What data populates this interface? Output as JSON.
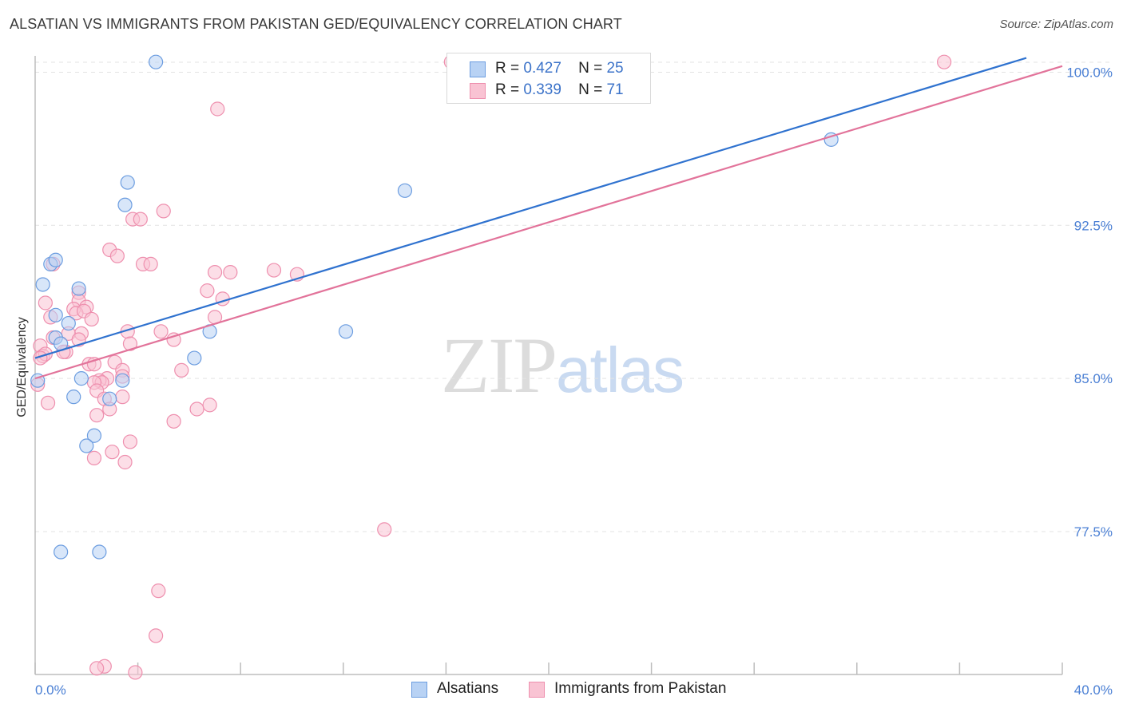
{
  "header": {
    "title": "ALSATIAN VS IMMIGRANTS FROM PAKISTAN GED/EQUIVALENCY CORRELATION CHART",
    "source": "Source: ZipAtlas.com"
  },
  "watermark": {
    "zip": "ZIP",
    "atlas": "atlas"
  },
  "legend_top": {
    "rows": [
      {
        "r_label": "R =",
        "r_value": "0.427",
        "n_label": "N =",
        "n_value": "25"
      },
      {
        "r_label": "R =",
        "r_value": "0.339",
        "n_label": "N =",
        "n_value": "71"
      }
    ]
  },
  "legend_bottom": {
    "items": [
      "Alsatians",
      "Immigrants from Pakistan"
    ]
  },
  "colors": {
    "alsatian_fill": "#b8d2f4",
    "alsatian_stroke": "#6c9de0",
    "alsatian_line": "#2f72cf",
    "pakistan_fill": "#f9c3d3",
    "pakistan_stroke": "#ee8fae",
    "pakistan_line": "#e2739a",
    "grid": "#e3e3e3",
    "axis_text": "#4a7fd4"
  },
  "chart_data": {
    "type": "scatter",
    "title": "ALSATIAN VS IMMIGRANTS FROM PAKISTAN GED/EQUIVALENCY CORRELATION CHART",
    "xlabel": "",
    "ylabel": "GED/Equivalency",
    "xlim": [
      0,
      40
    ],
    "ylim": [
      70.5,
      100.8
    ],
    "x_tick_labels": [
      "0.0%",
      "40.0%"
    ],
    "y_ticks": [
      77.5,
      85.0,
      92.5,
      100.0
    ],
    "y_tick_labels": [
      "77.5%",
      "85.0%",
      "92.5%",
      "100.0%"
    ],
    "grid": true,
    "series": [
      {
        "name": "Alsatians",
        "R": 0.427,
        "N": 25,
        "trend": {
          "x": [
            0,
            38.6
          ],
          "y": [
            86.0,
            100.7
          ]
        },
        "points": [
          [
            4.7,
            100.5
          ],
          [
            3.6,
            94.6
          ],
          [
            3.5,
            93.5
          ],
          [
            14.4,
            94.2
          ],
          [
            31.0,
            96.7
          ],
          [
            0.6,
            90.6
          ],
          [
            0.8,
            90.8
          ],
          [
            0.3,
            89.6
          ],
          [
            1.7,
            89.4
          ],
          [
            0.8,
            88.1
          ],
          [
            1.3,
            87.7
          ],
          [
            0.8,
            87.0
          ],
          [
            1.0,
            86.7
          ],
          [
            6.8,
            87.3
          ],
          [
            12.1,
            87.3
          ],
          [
            6.2,
            86.0
          ],
          [
            1.8,
            85.0
          ],
          [
            3.4,
            84.9
          ],
          [
            0.1,
            84.9
          ],
          [
            1.5,
            84.1
          ],
          [
            2.9,
            84.0
          ],
          [
            2.3,
            82.2
          ],
          [
            2.0,
            81.7
          ],
          [
            1.0,
            76.5
          ],
          [
            2.5,
            76.5
          ]
        ]
      },
      {
        "name": "Immigrants from Pakistan",
        "R": 0.339,
        "N": 71,
        "trend": {
          "x": [
            0,
            40
          ],
          "y": [
            85.0,
            100.3
          ]
        },
        "points": [
          [
            16.2,
            100.5
          ],
          [
            35.4,
            100.5
          ],
          [
            7.1,
            98.2
          ],
          [
            5.0,
            93.2
          ],
          [
            3.8,
            92.8
          ],
          [
            4.1,
            92.8
          ],
          [
            2.9,
            91.3
          ],
          [
            3.2,
            91.0
          ],
          [
            4.2,
            90.6
          ],
          [
            4.5,
            90.6
          ],
          [
            0.7,
            90.6
          ],
          [
            7.0,
            90.2
          ],
          [
            7.6,
            90.2
          ],
          [
            9.3,
            90.3
          ],
          [
            10.2,
            90.1
          ],
          [
            6.7,
            89.3
          ],
          [
            1.7,
            89.2
          ],
          [
            7.3,
            88.9
          ],
          [
            0.4,
            88.7
          ],
          [
            1.7,
            88.8
          ],
          [
            1.5,
            88.4
          ],
          [
            2.0,
            88.5
          ],
          [
            1.6,
            88.2
          ],
          [
            1.9,
            88.3
          ],
          [
            0.6,
            88.0
          ],
          [
            2.2,
            87.9
          ],
          [
            7.0,
            88.0
          ],
          [
            1.8,
            87.2
          ],
          [
            3.6,
            87.3
          ],
          [
            4.9,
            87.3
          ],
          [
            1.3,
            87.2
          ],
          [
            0.7,
            87.0
          ],
          [
            5.4,
            86.9
          ],
          [
            1.7,
            86.9
          ],
          [
            3.7,
            86.7
          ],
          [
            0.2,
            86.6
          ],
          [
            1.2,
            86.3
          ],
          [
            1.1,
            86.3
          ],
          [
            0.3,
            86.1
          ],
          [
            0.4,
            86.2
          ],
          [
            0.2,
            86.0
          ],
          [
            3.1,
            85.8
          ],
          [
            2.1,
            85.7
          ],
          [
            2.3,
            85.7
          ],
          [
            5.7,
            85.4
          ],
          [
            3.4,
            85.4
          ],
          [
            2.8,
            85.0
          ],
          [
            3.4,
            85.1
          ],
          [
            2.5,
            84.9
          ],
          [
            2.6,
            84.8
          ],
          [
            2.3,
            84.8
          ],
          [
            2.4,
            84.4
          ],
          [
            3.4,
            84.1
          ],
          [
            0.1,
            84.7
          ],
          [
            2.7,
            84.0
          ],
          [
            0.5,
            83.8
          ],
          [
            6.8,
            83.7
          ],
          [
            6.3,
            83.5
          ],
          [
            2.9,
            83.5
          ],
          [
            2.4,
            83.2
          ],
          [
            5.4,
            82.9
          ],
          [
            3.7,
            81.9
          ],
          [
            3.0,
            81.4
          ],
          [
            2.3,
            81.1
          ],
          [
            3.5,
            80.9
          ],
          [
            13.6,
            77.6
          ],
          [
            4.8,
            74.6
          ],
          [
            4.7,
            72.4
          ],
          [
            2.7,
            70.9
          ],
          [
            3.9,
            70.6
          ],
          [
            2.4,
            70.8
          ]
        ]
      }
    ]
  }
}
